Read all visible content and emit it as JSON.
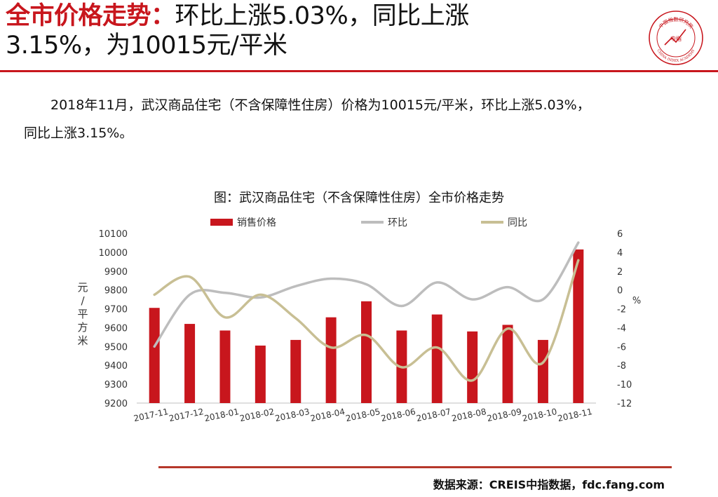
{
  "header": {
    "title_lead": "全市价格走势：",
    "title_rest_line1": "环比上涨5.03%，同比上涨",
    "title_line2": "3.15%，为10015元/平米"
  },
  "intro": {
    "line1": "2018年11月，武汉商品住宅（不含保障性住房）价格为10015元/平米，环比上涨5.03%，",
    "line2": "同比上涨3.15%。"
  },
  "chart_data": {
    "type": "bar",
    "title": "图：武汉商品住宅（不含保障性住房）全市价格走势",
    "categories": [
      "2017-11",
      "2017-12",
      "2018-01",
      "2018-02",
      "2018-03",
      "2018-04",
      "2018-05",
      "2018-06",
      "2018-07",
      "2018-08",
      "2018-09",
      "2018-10",
      "2018-11"
    ],
    "ylabel": "元/平方米",
    "y2label": "%",
    "ylim": [
      9200,
      10100
    ],
    "yticks": [
      9200,
      9300,
      9400,
      9500,
      9600,
      9700,
      9800,
      9900,
      10000,
      10100
    ],
    "y2lim": [
      -12,
      6
    ],
    "y2ticks": [
      -12,
      -10,
      -8,
      -6,
      -4,
      -2,
      0,
      2,
      4,
      6
    ],
    "legend_position": "top",
    "series": [
      {
        "name": "销售价格",
        "kind": "bar",
        "axis": "left",
        "color": "#c8161d",
        "values": [
          9705,
          9620,
          9585,
          9505,
          9535,
          9655,
          9740,
          9585,
          9670,
          9580,
          9615,
          9535,
          10015
        ]
      },
      {
        "name": "环比",
        "kind": "line",
        "axis": "right",
        "color": "#bdbdbd",
        "values": [
          -6.0,
          -0.5,
          -0.3,
          -0.8,
          0.4,
          1.2,
          0.6,
          -1.7,
          0.8,
          -1.0,
          0.3,
          -1.0,
          5.03
        ]
      },
      {
        "name": "同比",
        "kind": "line",
        "axis": "right",
        "color": "#c8bf94",
        "values": [
          -0.5,
          1.4,
          -2.9,
          -0.5,
          -3.0,
          -6.1,
          -4.8,
          -8.2,
          -6.1,
          -9.6,
          -4.1,
          -7.7,
          3.15
        ]
      }
    ]
  },
  "footer": {
    "source": "数据来源：CREIS中指数据，fdc.fang.com"
  },
  "logo": {
    "top_text": "中国指数研究院",
    "center_text": "中指",
    "bottom_text": "CHINA INDEX ACADEMY"
  },
  "colors": {
    "accent": "#c8161d",
    "footer_rule": "#b6382b"
  }
}
